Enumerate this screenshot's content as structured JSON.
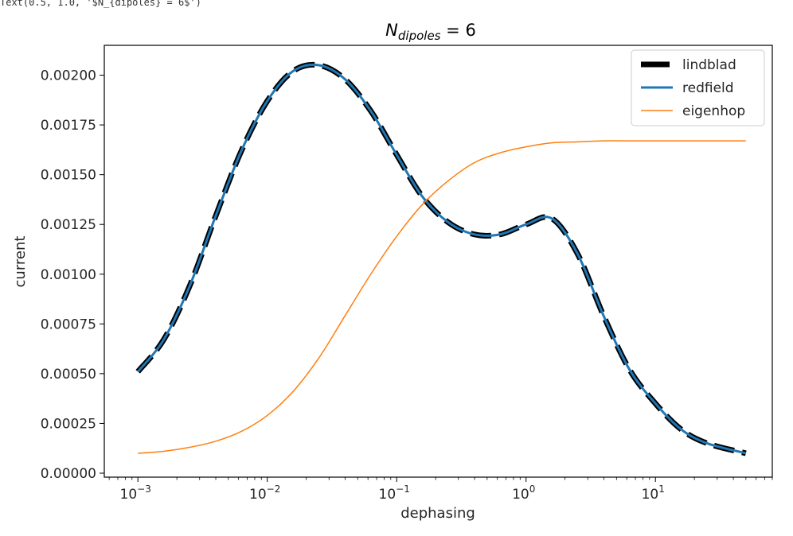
{
  "output_text": "Text(0.5, 1.0, '$N_{dipoles} = 6$')",
  "chart_data": {
    "type": "line",
    "title": {
      "main": "N",
      "sub": "dipoles",
      "rest": " = 6"
    },
    "xlabel": "dephasing",
    "ylabel": "current",
    "xscale": "log",
    "xlim": [
      0.00055,
      80
    ],
    "ylim": [
      -2e-05,
      0.00215
    ],
    "yticks": [
      {
        "v": 0,
        "label": "0.00000"
      },
      {
        "v": 0.00025,
        "label": "0.00025"
      },
      {
        "v": 0.0005,
        "label": "0.00050"
      },
      {
        "v": 0.00075,
        "label": "0.00075"
      },
      {
        "v": 0.001,
        "label": "0.00100"
      },
      {
        "v": 0.00125,
        "label": "0.00125"
      },
      {
        "v": 0.0015,
        "label": "0.00150"
      },
      {
        "v": 0.00175,
        "label": "0.00175"
      },
      {
        "v": 0.002,
        "label": "0.00200"
      }
    ],
    "xticks": [
      {
        "exp": -3,
        "base": "10",
        "sup": "−3"
      },
      {
        "exp": -2,
        "base": "10",
        "sup": "−2"
      },
      {
        "exp": -1,
        "base": "10",
        "sup": "−1"
      },
      {
        "exp": 0,
        "base": "10",
        "sup": "0"
      },
      {
        "exp": 1,
        "base": "10",
        "sup": "1"
      }
    ],
    "grid": false,
    "legend_position": "top-right",
    "x": [
      0.001,
      0.00158,
      0.00251,
      0.00398,
      0.00631,
      0.01,
      0.0158,
      0.0251,
      0.0398,
      0.0631,
      0.1,
      0.158,
      0.251,
      0.398,
      0.631,
      1.0,
      1.58,
      2.51,
      3.98,
      6.31,
      10,
      15.8,
      25.1,
      50
    ],
    "series": [
      {
        "name": "lindblad",
        "color": "#000000",
        "style": "dashed",
        "width": 7,
        "values": [
          0.00051,
          0.00067,
          0.00094,
          0.00129,
          0.00162,
          0.00187,
          0.00202,
          0.00205,
          0.00198,
          0.00182,
          0.0016,
          0.00139,
          0.00126,
          0.0012,
          0.0012,
          0.00125,
          0.00128,
          0.0011,
          0.00079,
          0.00052,
          0.00035,
          0.00022,
          0.00015,
          0.0001
        ]
      },
      {
        "name": "redfield",
        "color": "#1f77b4",
        "style": "solid",
        "width": 3,
        "values": [
          0.00051,
          0.00067,
          0.00094,
          0.00129,
          0.00162,
          0.00187,
          0.00202,
          0.00205,
          0.00198,
          0.00182,
          0.0016,
          0.00139,
          0.00126,
          0.0012,
          0.0012,
          0.00125,
          0.00128,
          0.0011,
          0.00079,
          0.00052,
          0.00035,
          0.00022,
          0.00015,
          0.0001
        ]
      },
      {
        "name": "eigenhop",
        "color": "#ff7f0e",
        "style": "solid",
        "width": 1.5,
        "values": [
          0.0001,
          0.00011,
          0.00013,
          0.00016,
          0.00021,
          0.00029,
          0.00041,
          0.00058,
          0.00079,
          0.001,
          0.00119,
          0.00135,
          0.00147,
          0.00156,
          0.00161,
          0.00164,
          0.00166,
          0.001665,
          0.00167,
          0.00167,
          0.00167,
          0.00167,
          0.00167,
          0.00167
        ]
      }
    ]
  }
}
